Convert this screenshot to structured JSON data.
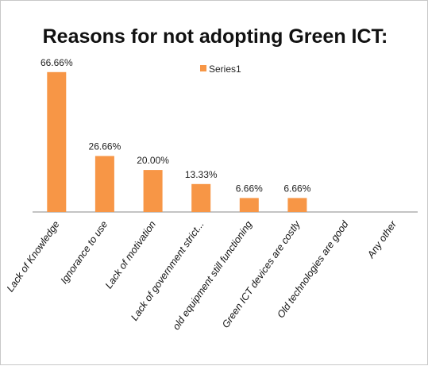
{
  "chart_data": {
    "type": "bar",
    "title": "Reasons for not adopting Green ICT:",
    "categories": [
      "Lack of Knowledge",
      "Ignorance  to use",
      "Lack of motivation",
      "Lack of government strict...",
      "old equipment still functioning",
      "Green ICT devices are costly",
      "Old technologies are good",
      "Any other"
    ],
    "series": [
      {
        "name": "Series1",
        "values": [
          66.66,
          26.66,
          20.0,
          13.33,
          6.66,
          6.66,
          0,
          0
        ],
        "labels": [
          "66.66%",
          "26.66%",
          "20.00%",
          "13.33%",
          "6.66%",
          "6.66%",
          "",
          ""
        ]
      }
    ],
    "ylim": [
      0,
      70
    ],
    "grid": false,
    "legend": "top-center",
    "colors": {
      "bar": "#F79646",
      "axis": "#888888"
    }
  }
}
